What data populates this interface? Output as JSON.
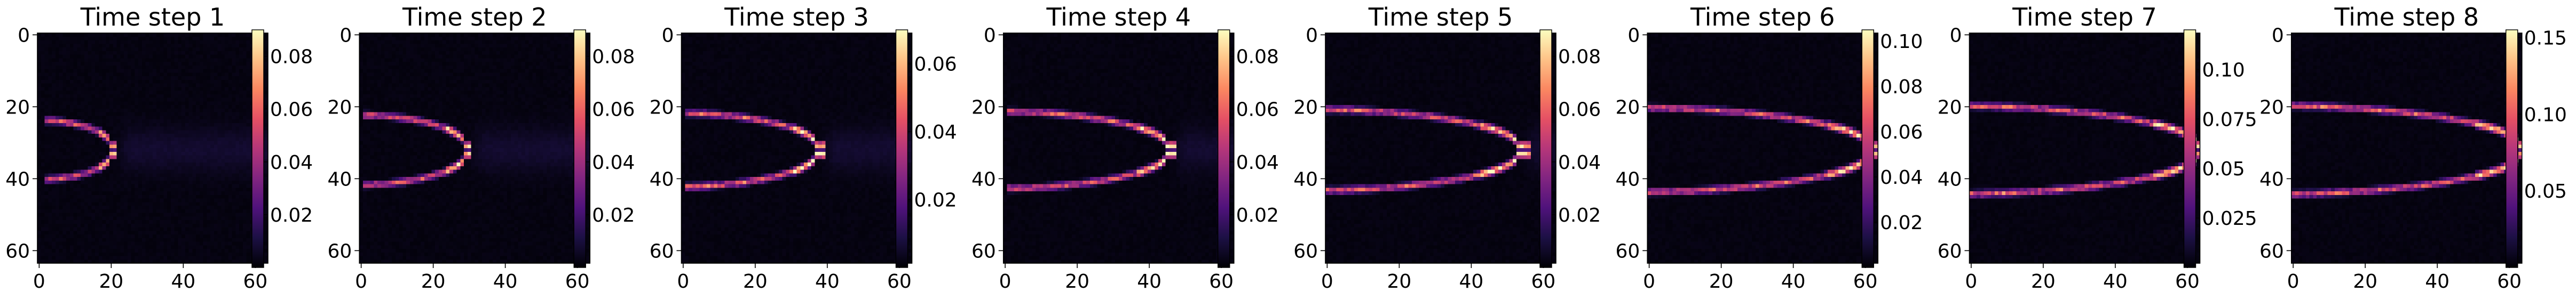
{
  "chart_data": [
    {
      "type": "heatmap",
      "title": "Time step 1",
      "colormap": "magma",
      "xticks": [
        0,
        20,
        40,
        60
      ],
      "yticks": [
        0,
        20,
        40,
        60
      ],
      "xlim": [
        0,
        64
      ],
      "ylim": [
        64,
        0
      ],
      "colorbar": {
        "ticks": [
          0.02,
          0.04,
          0.06,
          0.08
        ],
        "range": [
          0,
          0.09
        ]
      },
      "front": {
        "tip_x": 20,
        "spread": 7
      }
    },
    {
      "type": "heatmap",
      "title": "Time step 2",
      "colormap": "magma",
      "xticks": [
        0,
        20,
        40,
        60
      ],
      "yticks": [
        0,
        20,
        40,
        60
      ],
      "xlim": [
        0,
        64
      ],
      "ylim": [
        64,
        0
      ],
      "colorbar": {
        "ticks": [
          0.02,
          0.04,
          0.06,
          0.08
        ],
        "range": [
          0,
          0.09
        ]
      },
      "front": {
        "tip_x": 29,
        "spread": 8.5
      }
    },
    {
      "type": "heatmap",
      "title": "Time step 3",
      "colormap": "magma",
      "xticks": [
        0,
        20,
        40,
        60
      ],
      "yticks": [
        0,
        20,
        40,
        60
      ],
      "xlim": [
        0,
        64
      ],
      "ylim": [
        64,
        0
      ],
      "colorbar": {
        "ticks": [
          0.02,
          0.04,
          0.06
        ],
        "range": [
          0,
          0.07
        ]
      },
      "front": {
        "tip_x": 37,
        "spread": 9
      }
    },
    {
      "type": "heatmap",
      "title": "Time step 4",
      "colormap": "magma",
      "xticks": [
        0,
        20,
        40,
        60
      ],
      "yticks": [
        0,
        20,
        40,
        60
      ],
      "xlim": [
        0,
        64
      ],
      "ylim": [
        64,
        0
      ],
      "colorbar": {
        "ticks": [
          0.02,
          0.04,
          0.06,
          0.08
        ],
        "range": [
          0,
          0.09
        ]
      },
      "front": {
        "tip_x": 45,
        "spread": 9.5
      }
    },
    {
      "type": "heatmap",
      "title": "Time step 5",
      "colormap": "magma",
      "xticks": [
        0,
        20,
        40,
        60
      ],
      "yticks": [
        0,
        20,
        40,
        60
      ],
      "xlim": [
        0,
        64
      ],
      "ylim": [
        64,
        0
      ],
      "colorbar": {
        "ticks": [
          0.02,
          0.04,
          0.06,
          0.08
        ],
        "range": [
          0,
          0.09
        ]
      },
      "front": {
        "tip_x": 53,
        "spread": 10
      }
    },
    {
      "type": "heatmap",
      "title": "Time step 6",
      "colormap": "magma",
      "xticks": [
        0,
        20,
        40,
        60
      ],
      "yticks": [
        0,
        20,
        40,
        60
      ],
      "xlim": [
        0,
        64
      ],
      "ylim": [
        64,
        0
      ],
      "colorbar": {
        "ticks": [
          0.02,
          0.04,
          0.06,
          0.08,
          0.1
        ],
        "range": [
          0,
          0.105
        ]
      },
      "front": {
        "tip_x": 61,
        "spread": 10.5
      }
    },
    {
      "type": "heatmap",
      "title": "Time step 7",
      "colormap": "magma",
      "xticks": [
        0,
        20,
        40,
        60
      ],
      "yticks": [
        0,
        20,
        40,
        60
      ],
      "xlim": [
        0,
        64
      ],
      "ylim": [
        64,
        0
      ],
      "colorbar": {
        "ticks": [
          0.025,
          0.05,
          0.075,
          0.1
        ],
        "range": [
          0,
          0.12
        ]
      },
      "front": {
        "tip_x": 63,
        "spread": 11
      }
    },
    {
      "type": "heatmap",
      "title": "Time step 8",
      "colormap": "magma",
      "xticks": [
        0,
        20,
        40,
        60
      ],
      "yticks": [
        0,
        20,
        40,
        60
      ],
      "xlim": [
        0,
        64
      ],
      "ylim": [
        64,
        0
      ],
      "colorbar": {
        "ticks": [
          0.05,
          0.1,
          0.15
        ],
        "range": [
          0,
          0.155
        ]
      },
      "front": {
        "tip_x": 63,
        "spread": 11
      }
    }
  ],
  "colormap_stops": [
    "#000004",
    "#1c1044",
    "#4f127b",
    "#812581",
    "#b5367a",
    "#e55064",
    "#fb8761",
    "#fec287",
    "#fcfdbf"
  ]
}
